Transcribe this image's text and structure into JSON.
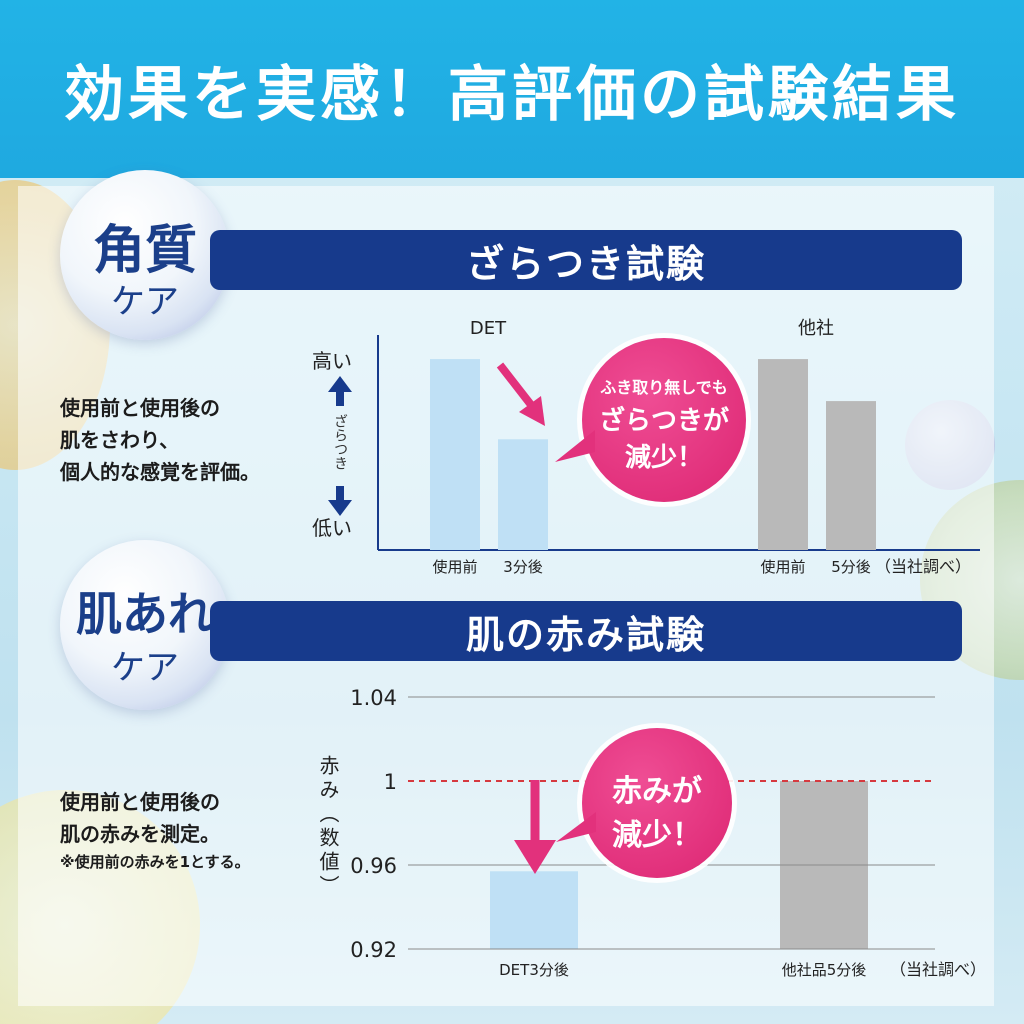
{
  "header": {
    "title": "効果を実感！高評価の試験結果"
  },
  "section1": {
    "badge_line1": "角質",
    "badge_line2": "ケア",
    "banner": "ざらつき試験",
    "description": [
      "使用前と使用後の",
      "肌をさわり、",
      "個人的な感覚を評価。"
    ],
    "callout": [
      "ふき取り無しでも",
      "ざらつきが",
      "減少！"
    ],
    "axis_high": "高い",
    "axis_low": "低い",
    "axis_mid": "ざらつき",
    "source_note": "（当社調べ）"
  },
  "section2": {
    "badge_line1": "肌あれ",
    "badge_line2": "ケア",
    "banner": "肌の赤み試験",
    "description": [
      "使用前と使用後の",
      "肌の赤みを測定。"
    ],
    "note": "※使用前の赤みを1とする。",
    "callout": [
      "赤みが",
      "減少！"
    ],
    "source_note": "（当社調べ）"
  },
  "colors": {
    "header": "#1fa9e0",
    "banner": "#173a8c",
    "callout": "#e2317c",
    "bar_det": "#bfe0f5",
    "bar_other": "#b9b9b9",
    "reference_line": "#d6393f"
  },
  "chart_data": [
    {
      "type": "bar",
      "title": "ざらつき試験",
      "ylabel": "ざらつき",
      "groups": [
        {
          "name": "DET",
          "categories": [
            "使用前",
            "3分後"
          ],
          "values": [
            100,
            58
          ]
        },
        {
          "name": "他社",
          "categories": [
            "使用前",
            "5分後"
          ],
          "values": [
            100,
            78
          ]
        }
      ],
      "ylim": [
        0,
        110
      ],
      "grid": false
    },
    {
      "type": "bar",
      "title": "肌の赤み試験",
      "ylabel": "赤み（数値）",
      "categories": [
        "DET3分後",
        "他社品5分後"
      ],
      "values": [
        0.957,
        1.0
      ],
      "ylim": [
        0.92,
        1.04
      ],
      "yticks": [
        "1.04",
        "1",
        "0.96",
        "0.92"
      ],
      "ytick_values": [
        1.04,
        1.0,
        0.96,
        0.92
      ],
      "reference_line": 1.0,
      "grid": true
    }
  ]
}
